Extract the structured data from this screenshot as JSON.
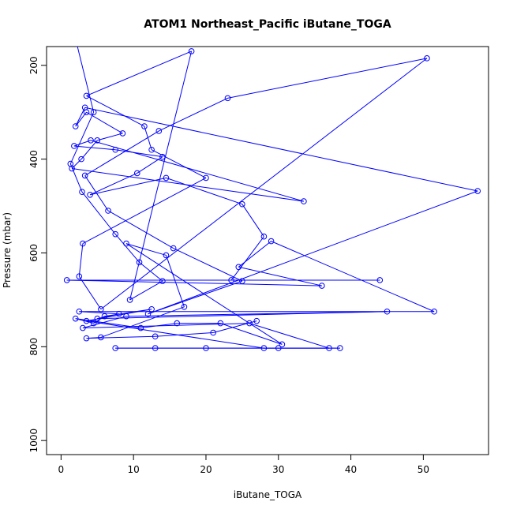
{
  "chart_data": {
    "type": "line",
    "title": "ATOM1 Northeast_Pacific iButane_TOGA",
    "xlabel": "iButane_TOGA",
    "ylabel": "Pressure (mbar)",
    "xlim": [
      -2,
      59
    ],
    "ylim": [
      1030,
      160
    ],
    "y_reversed": true,
    "xticks": [
      0,
      10,
      20,
      30,
      40,
      50
    ],
    "yticks": [
      200,
      400,
      600,
      800,
      1000
    ],
    "grid": false,
    "series": [
      {
        "color": "#0000ff",
        "marker": "open-circle",
        "line": true,
        "points": [
          [
            2.1,
            150
          ],
          [
            4.5,
            300
          ],
          [
            1.3,
            410
          ],
          [
            2.9,
            470
          ],
          [
            7.5,
            560
          ],
          [
            10.8,
            620
          ],
          [
            14.0,
            660
          ],
          [
            9.5,
            700
          ],
          [
            18.0,
            170
          ],
          [
            3.5,
            265
          ],
          [
            11.5,
            330
          ],
          [
            12.5,
            380
          ],
          [
            20.0,
            440
          ],
          [
            3.0,
            580
          ],
          [
            2.5,
            650
          ],
          [
            5.5,
            720
          ],
          [
            50.5,
            185
          ],
          [
            23.0,
            270
          ],
          [
            13.5,
            340
          ],
          [
            3.3,
            435
          ],
          [
            6.5,
            510
          ],
          [
            15.5,
            590
          ],
          [
            25.0,
            660
          ],
          [
            12.0,
            730
          ],
          [
            57.5,
            468
          ],
          [
            3.3,
            290
          ],
          [
            2.0,
            330
          ],
          [
            3.5,
            300
          ],
          [
            8.5,
            345
          ],
          [
            5.0,
            360
          ],
          [
            2.8,
            400
          ],
          [
            1.5,
            420
          ],
          [
            33.5,
            490
          ],
          [
            4.1,
            360
          ],
          [
            1.8,
            372
          ],
          [
            7.5,
            380
          ],
          [
            14.0,
            395
          ],
          [
            10.5,
            430
          ],
          [
            4.0,
            476
          ],
          [
            14.5,
            440
          ],
          [
            25.0,
            496
          ],
          [
            28.0,
            565
          ],
          [
            23.5,
            658
          ],
          [
            44.0,
            658
          ],
          [
            0.8,
            658
          ],
          [
            36.0,
            670
          ],
          [
            24.5,
            630
          ],
          [
            29.0,
            575
          ],
          [
            51.5,
            725
          ],
          [
            2.5,
            725
          ],
          [
            8.0,
            730
          ],
          [
            5.0,
            740
          ],
          [
            45.0,
            725
          ],
          [
            9.0,
            735
          ],
          [
            3.0,
            760
          ],
          [
            26.0,
            750
          ],
          [
            37.0,
            803
          ],
          [
            7.5,
            803
          ],
          [
            13.0,
            803
          ],
          [
            20.0,
            803
          ],
          [
            30.0,
            803
          ],
          [
            38.5,
            803
          ],
          [
            28.0,
            803
          ],
          [
            3.5,
            745
          ],
          [
            12.5,
            720
          ],
          [
            6.0,
            735
          ],
          [
            4.5,
            750
          ],
          [
            2.0,
            740
          ],
          [
            11.0,
            760
          ],
          [
            16.0,
            750
          ],
          [
            22.0,
            750
          ],
          [
            30.5,
            795
          ],
          [
            9.0,
            580
          ],
          [
            14.5,
            605
          ],
          [
            17.0,
            715
          ],
          [
            5.5,
            780
          ],
          [
            3.5,
            782
          ],
          [
            13.0,
            778
          ],
          [
            21.0,
            770
          ],
          [
            27.0,
            745
          ]
        ]
      }
    ]
  }
}
